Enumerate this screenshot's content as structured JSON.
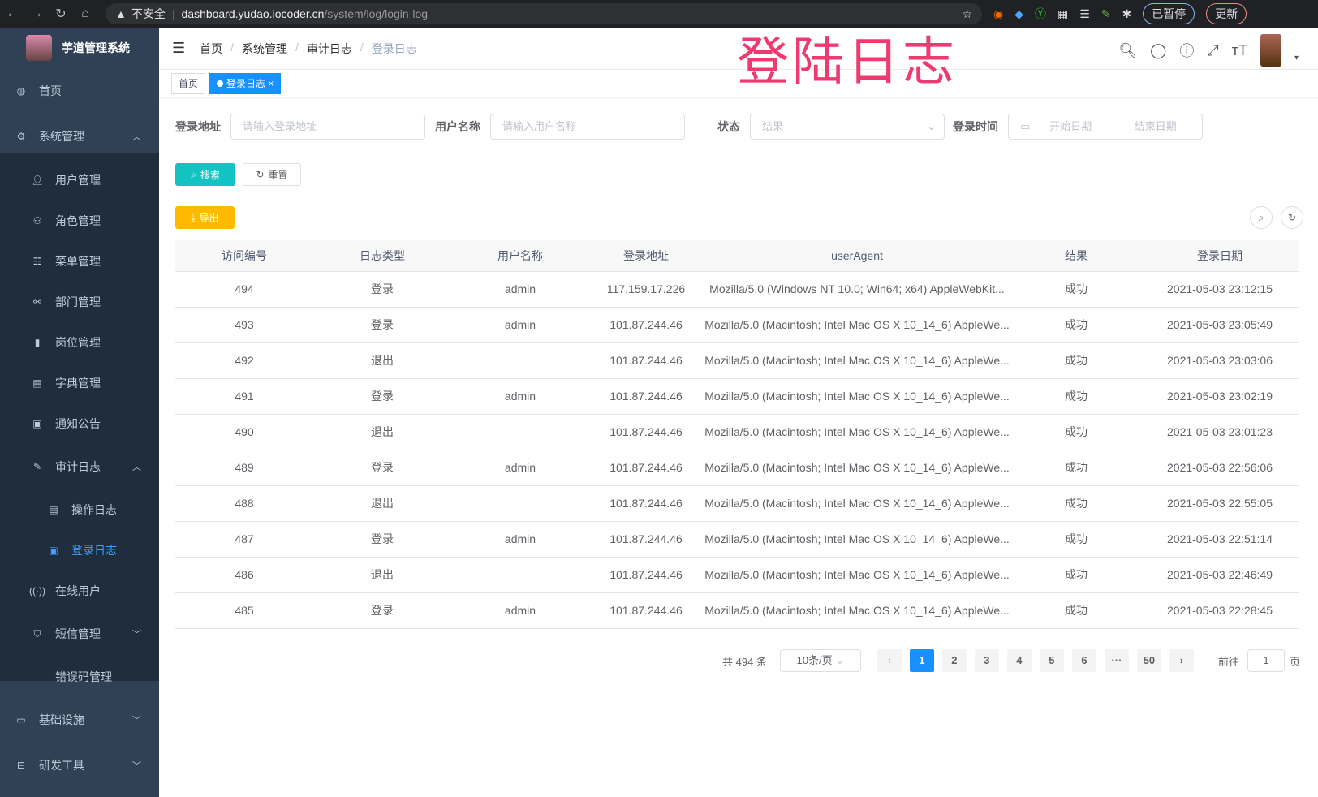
{
  "browser": {
    "insecure": "不安全",
    "host": "dashboard.yudao.iocoder.cn",
    "path": "/system/log/login-log",
    "paused": "已暂停",
    "update": "更新"
  },
  "overlay_title": "登陆日志",
  "sidebar": {
    "title": "芋道管理系统",
    "items": [
      {
        "label": "首页",
        "icon": "dashboard-icon",
        "level": 0
      },
      {
        "label": "系统管理",
        "icon": "gear-icon",
        "level": 0,
        "chev": "up"
      },
      {
        "label": "用户管理",
        "icon": "user-icon",
        "level": 1
      },
      {
        "label": "角色管理",
        "icon": "peoples-icon",
        "level": 1
      },
      {
        "label": "菜单管理",
        "icon": "tree-table-icon",
        "level": 1
      },
      {
        "label": "部门管理",
        "icon": "tree-icon",
        "level": 1
      },
      {
        "label": "岗位管理",
        "icon": "post-icon",
        "level": 1
      },
      {
        "label": "字典管理",
        "icon": "dict-icon",
        "level": 1
      },
      {
        "label": "通知公告",
        "icon": "message-icon",
        "level": 1
      },
      {
        "label": "审计日志",
        "icon": "log-icon",
        "level": 1,
        "chev": "up"
      },
      {
        "label": "操作日志",
        "icon": "form-icon",
        "level": 2
      },
      {
        "label": "登录日志",
        "icon": "logininfor-icon",
        "level": 2,
        "active": true
      },
      {
        "label": "在线用户",
        "icon": "online-icon",
        "level": 1
      },
      {
        "label": "短信管理",
        "icon": "validCode-icon",
        "level": 1,
        "chev": "down"
      },
      {
        "label": "错误码管理",
        "icon": "code-icon",
        "level": 1
      },
      {
        "label": "基础设施",
        "icon": "monitor-icon",
        "level": 0,
        "chev": "down"
      },
      {
        "label": "研发工具",
        "icon": "tool-icon",
        "level": 0,
        "chev": "down"
      }
    ]
  },
  "breadcrumb": [
    "首页",
    "系统管理",
    "审计日志",
    "登录日志"
  ],
  "tags": {
    "home": "首页",
    "active": "登录日志",
    "close": "×"
  },
  "form": {
    "addr_label": "登录地址",
    "addr_ph": "请输入登录地址",
    "user_label": "用户名称",
    "user_ph": "请输入用户名称",
    "status_label": "状态",
    "status_ph": "结果",
    "time_label": "登录时间",
    "start_ph": "开始日期",
    "sep": "-",
    "end_ph": "结束日期",
    "search": "搜索",
    "reset": "重置",
    "export": "导出"
  },
  "table": {
    "columns": [
      "访问编号",
      "日志类型",
      "用户名称",
      "登录地址",
      "userAgent",
      "结果",
      "登录日期"
    ],
    "rows": [
      [
        "494",
        "登录",
        "admin",
        "117.159.17.226",
        "Mozilla/5.0 (Windows NT 10.0; Win64; x64) AppleWebKit...",
        "成功",
        "2021-05-03 23:12:15"
      ],
      [
        "493",
        "登录",
        "admin",
        "101.87.244.46",
        "Mozilla/5.0 (Macintosh; Intel Mac OS X 10_14_6) AppleWe...",
        "成功",
        "2021-05-03 23:05:49"
      ],
      [
        "492",
        "退出",
        "",
        "101.87.244.46",
        "Mozilla/5.0 (Macintosh; Intel Mac OS X 10_14_6) AppleWe...",
        "成功",
        "2021-05-03 23:03:06"
      ],
      [
        "491",
        "登录",
        "admin",
        "101.87.244.46",
        "Mozilla/5.0 (Macintosh; Intel Mac OS X 10_14_6) AppleWe...",
        "成功",
        "2021-05-03 23:02:19"
      ],
      [
        "490",
        "退出",
        "",
        "101.87.244.46",
        "Mozilla/5.0 (Macintosh; Intel Mac OS X 10_14_6) AppleWe...",
        "成功",
        "2021-05-03 23:01:23"
      ],
      [
        "489",
        "登录",
        "admin",
        "101.87.244.46",
        "Mozilla/5.0 (Macintosh; Intel Mac OS X 10_14_6) AppleWe...",
        "成功",
        "2021-05-03 22:56:06"
      ],
      [
        "488",
        "退出",
        "",
        "101.87.244.46",
        "Mozilla/5.0 (Macintosh; Intel Mac OS X 10_14_6) AppleWe...",
        "成功",
        "2021-05-03 22:55:05"
      ],
      [
        "487",
        "登录",
        "admin",
        "101.87.244.46",
        "Mozilla/5.0 (Macintosh; Intel Mac OS X 10_14_6) AppleWe...",
        "成功",
        "2021-05-03 22:51:14"
      ],
      [
        "486",
        "退出",
        "",
        "101.87.244.46",
        "Mozilla/5.0 (Macintosh; Intel Mac OS X 10_14_6) AppleWe...",
        "成功",
        "2021-05-03 22:46:49"
      ],
      [
        "485",
        "登录",
        "admin",
        "101.87.244.46",
        "Mozilla/5.0 (Macintosh; Intel Mac OS X 10_14_6) AppleWe...",
        "成功",
        "2021-05-03 22:28:45"
      ]
    ]
  },
  "pagination": {
    "total": "共 494 条",
    "size": "10条/页",
    "pages": [
      "1",
      "2",
      "3",
      "4",
      "5",
      "6",
      "···",
      "50"
    ],
    "current": "1",
    "goto": "前往",
    "goto_value": "1",
    "page_unit": "页"
  },
  "colors": {
    "primary": "#1890ff",
    "search": "#13c2c2",
    "export": "#ffba00",
    "sidebar": "#304156",
    "submenu": "#1f2d3d",
    "overlay": "#ee3a70"
  }
}
